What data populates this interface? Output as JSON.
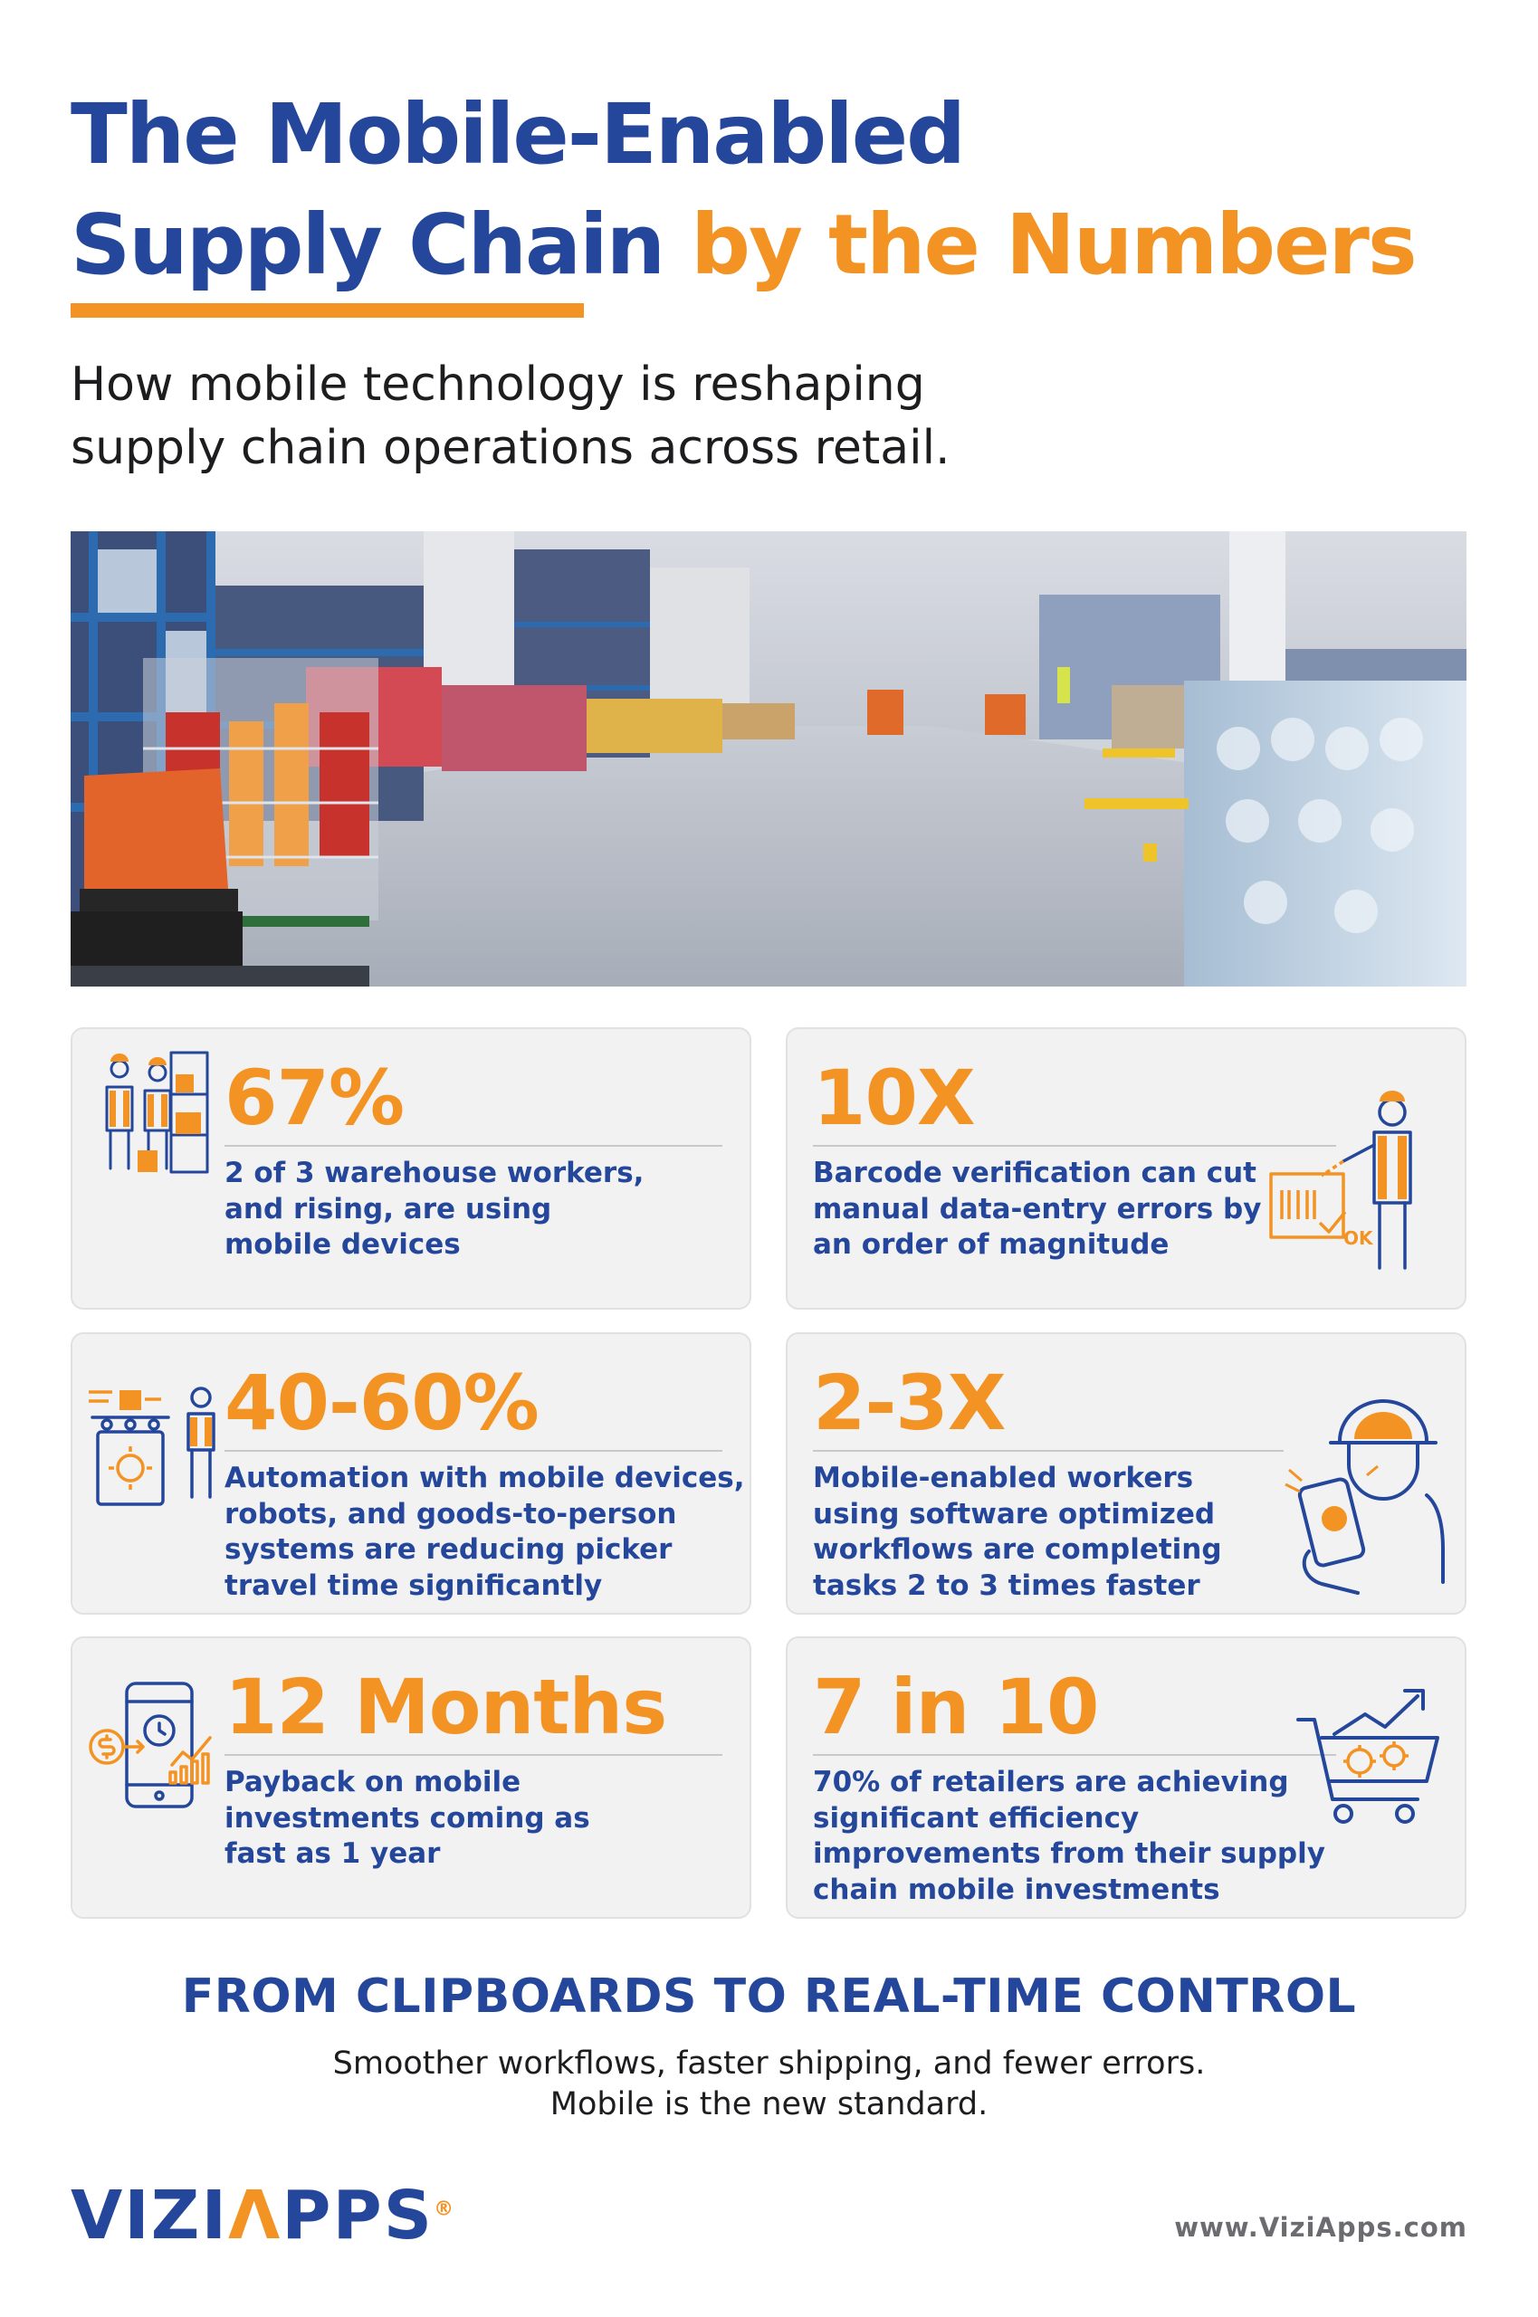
{
  "header": {
    "title_line1": "The Mobile-Enabled",
    "title_line2_main": "Supply Chain",
    "title_line2_highlight": "by the Numbers",
    "subtitle_line1": "How mobile technology is reshaping",
    "subtitle_line2": "supply chain operations across retail."
  },
  "stats": [
    {
      "value": "67%",
      "lines": [
        "2 of 3 warehouse workers,",
        "and rising, are using",
        "mobile devices"
      ],
      "icon": "warehouse-workers-icon"
    },
    {
      "value": "10X",
      "lines": [
        "Barcode verification can cut",
        "manual data-entry errors by",
        "an order of magnitude"
      ],
      "icon": "barcode-scanner-worker-icon",
      "icon_label": "OK"
    },
    {
      "value": "40-60%",
      "lines": [
        "Automation with mobile devices,",
        "robots, and goods-to-person",
        "systems are reducing picker",
        "travel time significantly"
      ],
      "icon": "automation-conveyor-icon"
    },
    {
      "value": "2-3X",
      "lines": [
        "Mobile-enabled workers",
        "using software optimized",
        "workflows are completing",
        "tasks 2 to 3 times faster"
      ],
      "icon": "worker-with-phone-icon"
    },
    {
      "value": "12 Months",
      "lines": [
        "Payback on mobile",
        "investments coming as",
        "fast as 1 year"
      ],
      "icon": "mobile-payback-icon"
    },
    {
      "value": "7 in 10",
      "lines": [
        "70% of retailers are achieving",
        "significant efficiency",
        "improvements from their supply",
        "chain mobile investments"
      ],
      "icon": "cart-growth-icon"
    }
  ],
  "section": {
    "heading": "FROM CLIPBOARDS TO REAL-TIME CONTROL",
    "line1": "Smoother workflows, faster shipping, and fewer errors.",
    "line2": "Mobile is the new standard."
  },
  "footer": {
    "logo_part1": "VIZI",
    "logo_accent": "Λ",
    "logo_part2": "PPS",
    "logo_mark": "®",
    "url": "www.ViziApps.com"
  },
  "colors": {
    "primary": "#24479b",
    "accent": "#f39324",
    "card_bg": "#f2f2f3",
    "text": "#1d1d1f"
  }
}
